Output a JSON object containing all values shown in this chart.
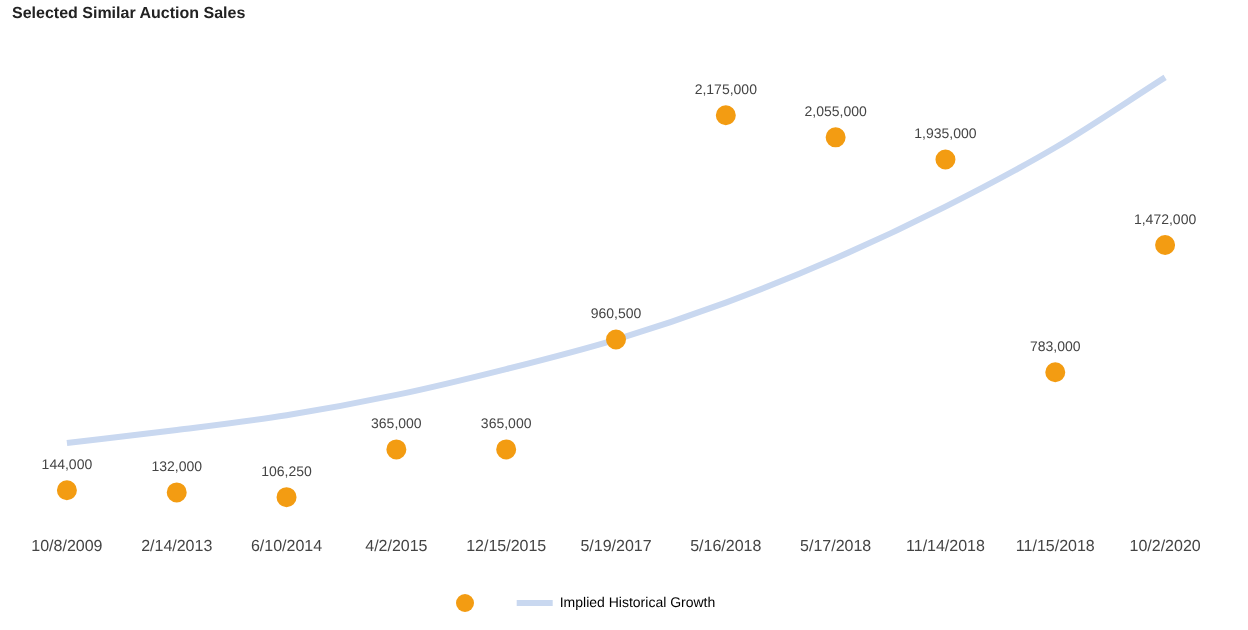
{
  "chart_data": {
    "type": "scatter",
    "title": "Selected Similar Auction Sales",
    "categories": [
      "10/8/2009",
      "2/14/2013",
      "6/10/2014",
      "4/2/2015",
      "12/15/2015",
      "5/19/2017",
      "5/16/2018",
      "5/17/2018",
      "11/14/2018",
      "11/15/2018",
      "10/2/2020"
    ],
    "series": [
      {
        "marker": "circle",
        "color": "#f39c12",
        "values": [
          144000,
          132000,
          106250,
          365000,
          365000,
          960500,
          2175000,
          2055000,
          1935000,
          783000,
          1472000
        ],
        "value_labels": [
          "144,000",
          "132,000",
          "106,250",
          "365,000",
          "365,000",
          "960,500",
          "2,175,000",
          "2,055,000",
          "1,935,000",
          "783,000",
          "1,472,000"
        ]
      },
      {
        "type": "line",
        "marker": "none",
        "line_style": "solid",
        "name": "Implied Historical Growth",
        "color": "#c9d8f0",
        "values": [
          400000,
          470000,
          550000,
          660000,
          800000,
          960000,
          1160000,
          1400000,
          1680000,
          2000000,
          2380000
        ]
      }
    ],
    "tick_labels": "x",
    "grid": false,
    "legend": "bottom"
  }
}
